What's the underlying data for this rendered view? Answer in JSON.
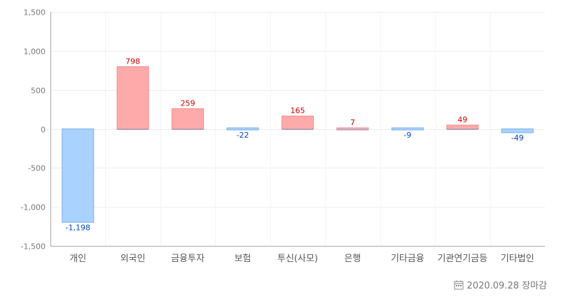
{
  "chart_data": {
    "type": "bar",
    "categories": [
      "개인",
      "외국인",
      "금융투자",
      "보험",
      "투신(사모)",
      "은행",
      "기타금융",
      "기관연기금등",
      "기타법인"
    ],
    "values": [
      -1198,
      798,
      259,
      -22,
      165,
      7,
      -9,
      49,
      -49
    ],
    "data_labels": [
      "-1,198",
      "798",
      "259",
      "-22",
      "165",
      "7",
      "-9",
      "49",
      "-49"
    ],
    "ylim": [
      -1500,
      1500
    ],
    "yticks": [
      1500,
      1000,
      500,
      0,
      -500,
      -1000,
      -1500
    ],
    "ytick_labels": [
      "1,500",
      "1,000",
      "500",
      "0",
      "-500",
      "-1,000",
      "-1,500"
    ],
    "grid": true,
    "colors": {
      "positive_fill": "#ffaaaa",
      "positive_stroke": "#ee8c8c",
      "negative_fill": "#aad2ff",
      "negative_stroke": "#7aaee8",
      "positive_label": "#d20000",
      "negative_label": "#0046c8",
      "axis": "#aaaaaa",
      "grid": "#eeeeee"
    }
  },
  "footer": {
    "icon": "calendar-icon",
    "date_text": "2020.09.28 장마감"
  }
}
